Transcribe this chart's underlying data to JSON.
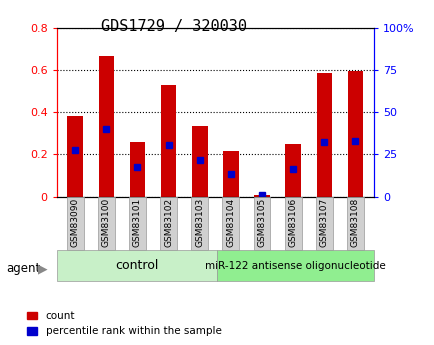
{
  "title": "GDS1729 / 320030",
  "categories": [
    "GSM83090",
    "GSM83100",
    "GSM83101",
    "GSM83102",
    "GSM83103",
    "GSM83104",
    "GSM83105",
    "GSM83106",
    "GSM83107",
    "GSM83108"
  ],
  "count_values": [
    0.38,
    0.665,
    0.26,
    0.53,
    0.335,
    0.215,
    0.01,
    0.25,
    0.585,
    0.595
  ],
  "percentile_values": [
    0.22,
    0.32,
    0.14,
    0.245,
    0.175,
    0.105,
    0.01,
    0.13,
    0.26,
    0.265
  ],
  "ylim_left": [
    0,
    0.8
  ],
  "ylim_right": [
    0,
    100
  ],
  "yticks_left": [
    0,
    0.2,
    0.4,
    0.6,
    0.8
  ],
  "yticks_right": [
    0,
    25,
    50,
    75,
    100
  ],
  "ytick_labels_left": [
    "0",
    "0.2",
    "0.4",
    "0.6",
    "0.8"
  ],
  "ytick_labels_right": [
    "0",
    "25",
    "50",
    "75",
    "100%"
  ],
  "bar_color": "#cc0000",
  "dot_color": "#0000cc",
  "control_label": "control",
  "treatment_label": "miR-122 antisense oligonucleotide",
  "agent_label": "agent",
  "legend_count": "count",
  "legend_percentile": "percentile rank within the sample",
  "control_color": "#c8f0c8",
  "treatment_color": "#90ee90",
  "xlabel_bg": "#d0d0d0",
  "title_fontsize": 11,
  "bar_width": 0.5
}
